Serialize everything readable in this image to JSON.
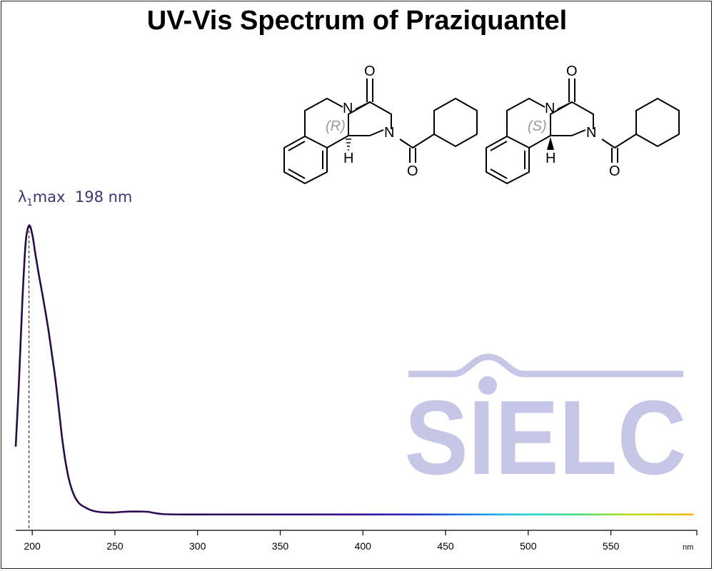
{
  "page": {
    "title": "UV-Vis Spectrum of Praziquantel",
    "peak_label": {
      "symbol": "λ",
      "subscript": "1",
      "suffix": "max",
      "value": "198 nm"
    },
    "watermark": "SIELC",
    "structure_labels": {
      "r": "(R)",
      "s": "(S)",
      "oxygen": "O",
      "nitrogen": "N",
      "hydrogen": "H"
    }
  },
  "chart_data": {
    "type": "line",
    "title": "UV-Vis Spectrum of Praziquantel",
    "xlabel": "",
    "ylabel": "",
    "x_unit": "nm",
    "xlim": [
      190,
      602
    ],
    "ylim": [
      0,
      1
    ],
    "grid": false,
    "x_ticks": [
      200,
      250,
      300,
      350,
      400,
      450,
      500,
      550
    ],
    "annotations": [
      {
        "text": "λ1max 198 nm",
        "x": 198
      }
    ],
    "series": [
      {
        "x": [
          190,
          192,
          194,
          196,
          198,
          200,
          202,
          204,
          206,
          208,
          210,
          212,
          214,
          216,
          218,
          220,
          222,
          224,
          226,
          228,
          230,
          235,
          240,
          245,
          250,
          255,
          260,
          265,
          270,
          275,
          280,
          290,
          300,
          350,
          400,
          450,
          500,
          550,
          600
        ],
        "values": [
          0.237,
          0.466,
          0.736,
          0.939,
          1.0,
          0.97,
          0.898,
          0.83,
          0.768,
          0.702,
          0.632,
          0.552,
          0.47,
          0.372,
          0.27,
          0.189,
          0.129,
          0.088,
          0.061,
          0.044,
          0.034,
          0.019,
          0.012,
          0.01,
          0.01,
          0.012,
          0.013,
          0.013,
          0.012,
          0.007,
          0.004,
          0.003,
          0.003,
          0.003,
          0.003,
          0.003,
          0.003,
          0.003,
          0.003
        ]
      }
    ]
  }
}
